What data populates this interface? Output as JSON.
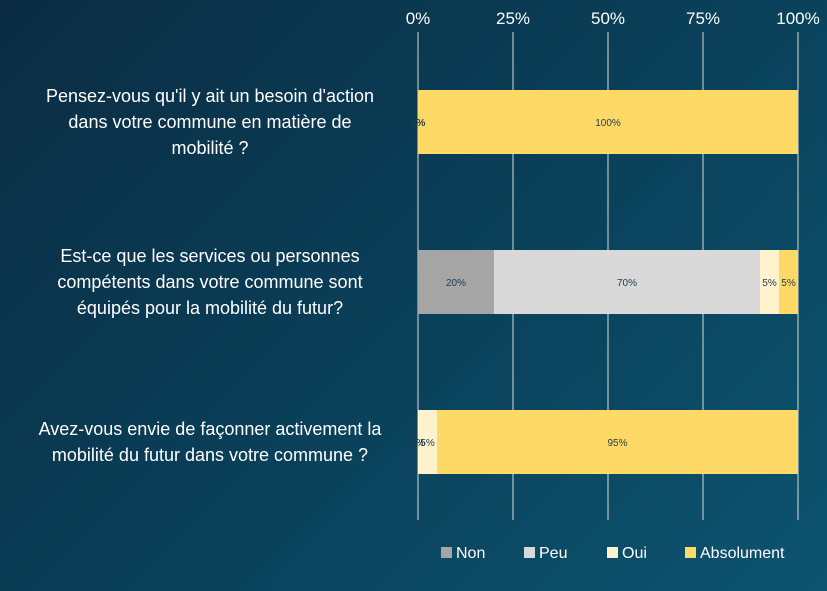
{
  "chart_data": {
    "type": "bar",
    "orientation": "horizontal",
    "stacked": "percent",
    "categories": [
      "Pensez-vous qu'il y ait un besoin d'action dans votre commune en matière de mobilité ?",
      "Est-ce que les services ou personnes compétents dans votre commune sont équipés pour la mobilité du futur?",
      "Avez-vous envie de façonner activement la mobilité du futur dans votre commune ?"
    ],
    "category_lines": [
      [
        "Pensez-vous qu'il y ait un besoin d'action",
        "dans votre commune en matière de",
        "mobilité ?"
      ],
      [
        "Est-ce que les services ou personnes",
        "compétents dans votre commune sont",
        "équipés pour la mobilité du futur?"
      ],
      [
        "Avez-vous envie de façonner activement la",
        "mobilité du futur dans votre commune ?"
      ]
    ],
    "series": [
      {
        "name": "Non",
        "color": "#a5a5a5",
        "values": [
          0,
          20,
          0
        ],
        "labels": [
          "0%",
          "20%",
          "0%"
        ]
      },
      {
        "name": "Peu",
        "color": "#d9d9d9",
        "values": [
          0,
          70,
          0
        ],
        "labels": [
          "0%",
          "70%",
          "0%"
        ]
      },
      {
        "name": "Oui",
        "color": "#fff2cc",
        "values": [
          0,
          5,
          5
        ],
        "labels": [
          "0%",
          "5%",
          "5%"
        ]
      },
      {
        "name": "Absolument",
        "color": "#ffd966",
        "values": [
          100,
          5,
          95
        ],
        "labels": [
          "100%",
          "5%",
          "95%"
        ]
      }
    ],
    "x_ticks": [
      "0%",
      "25%",
      "50%",
      "75%",
      "100%"
    ],
    "xlim": [
      0,
      100
    ],
    "axis_position": "top",
    "grid": true,
    "legend_position": "bottom"
  }
}
